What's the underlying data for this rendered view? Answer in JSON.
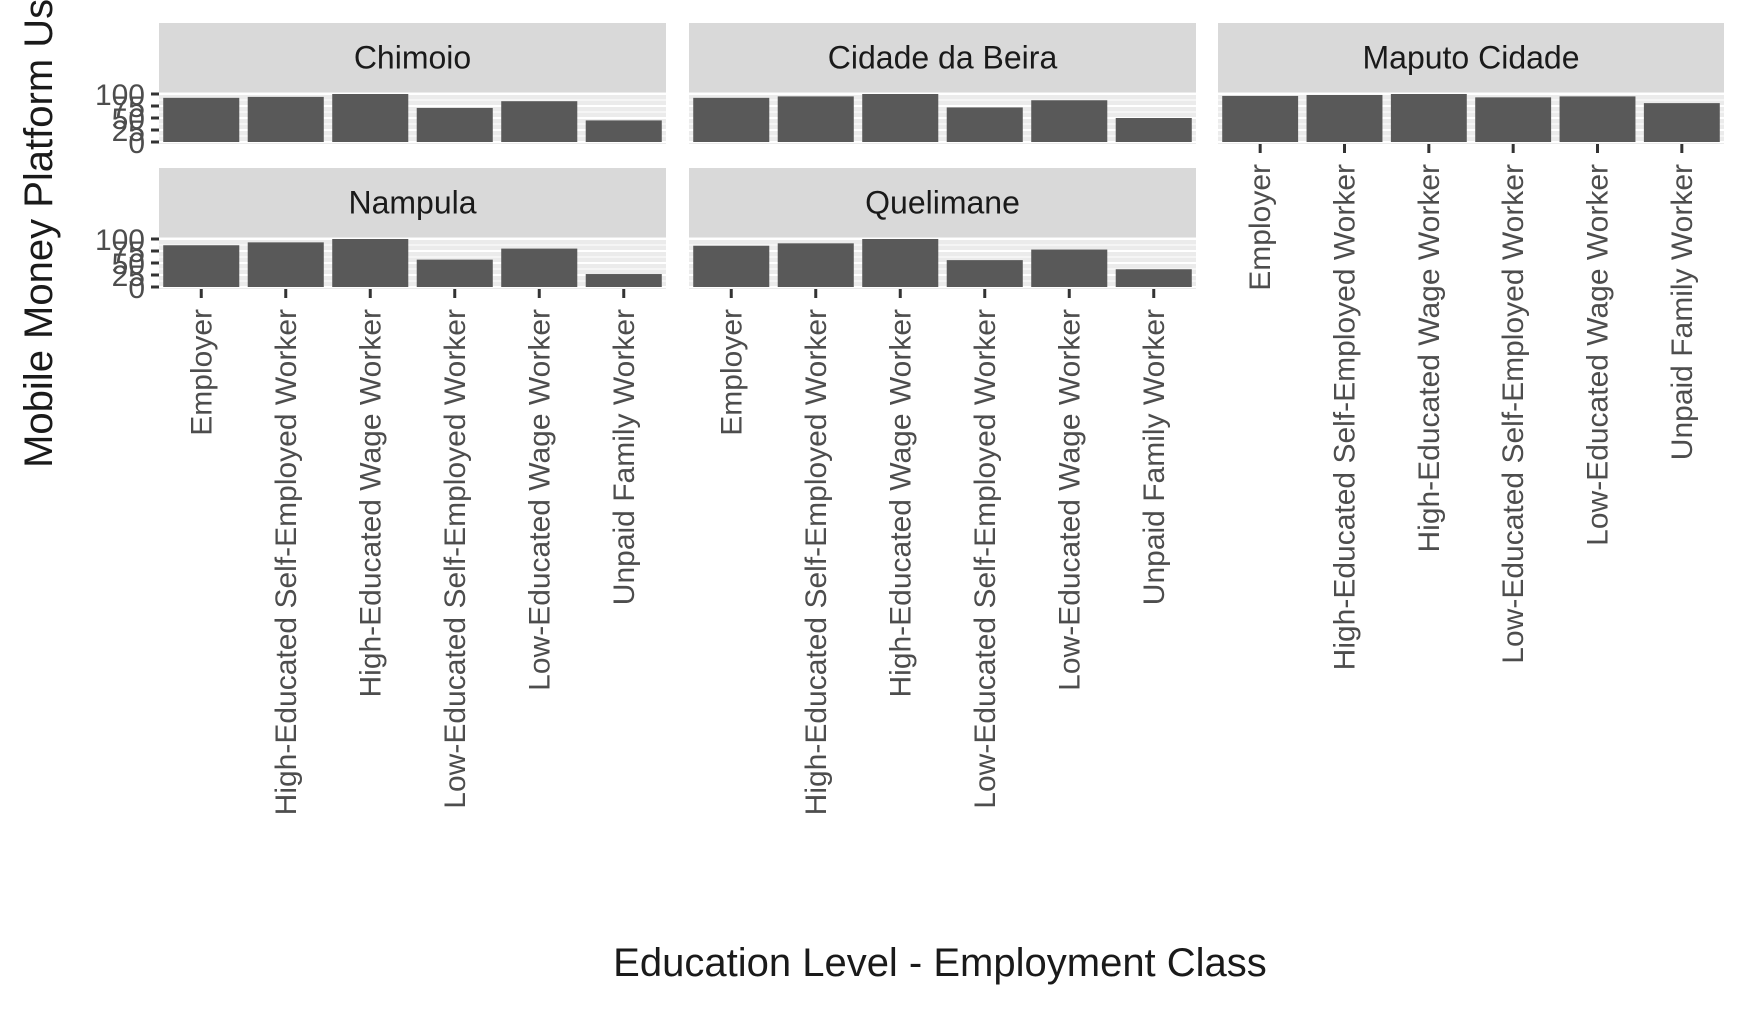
{
  "chart_data": {
    "type": "bar",
    "xlabel": "Education Level - Employment Class",
    "ylabel": "Mobile Money Platform Usage",
    "ylim": [
      0,
      100
    ],
    "yticks": [
      0,
      25,
      50,
      75,
      100
    ],
    "ytick_labels": [
      "0",
      "25",
      "50",
      "75",
      "100"
    ],
    "grid": true,
    "facet_layout": "3 columns, 2 rows, free y-scale per facet row",
    "categories": [
      "Employer",
      "High-Educated Self-Employed Worker",
      "High-Educated Wage Worker",
      "Low-Educated Self-Employed Worker",
      "Low-Educated Wage Worker",
      "Unpaid Family Worker"
    ],
    "panels": [
      {
        "title": "Chimoio",
        "values": [
          92,
          94,
          100,
          71,
          85,
          45
        ]
      },
      {
        "title": "Cidade da Beira",
        "values": [
          92,
          95,
          100,
          72,
          87,
          50
        ]
      },
      {
        "title": "Maputo Cidade",
        "values": [
          96,
          98,
          100,
          93,
          95,
          81
        ]
      },
      {
        "title": "Nampula",
        "values": [
          87,
          93,
          100,
          57,
          80,
          27
        ]
      },
      {
        "title": "Quelimane",
        "values": [
          86,
          91,
          100,
          56,
          78,
          37
        ]
      }
    ],
    "colors": {
      "bar": "#595959",
      "strip": "#d9d9d9",
      "panel_bg": "#ebebeb",
      "grid": "#ffffff",
      "text": "#1a1a1a",
      "tick_text": "#4d4d4d",
      "tick_mark": "#333333"
    }
  }
}
